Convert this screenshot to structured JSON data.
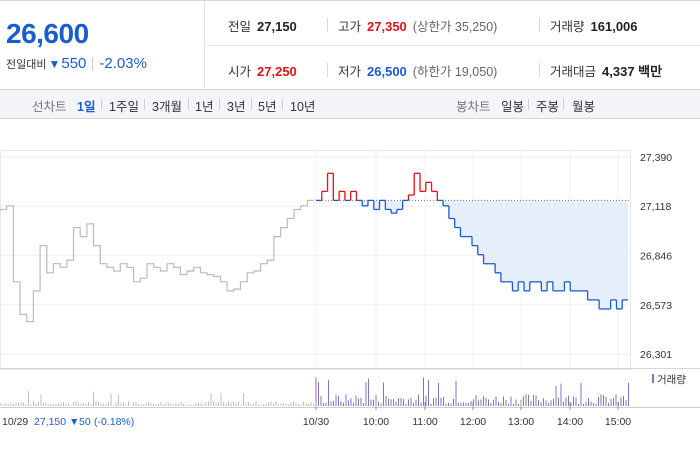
{
  "quote": {
    "price": "26,600",
    "change_label": "전일대비",
    "change": "550",
    "change_rate": "-2.03%",
    "prev_close_label": "전일",
    "prev_close": "27,150",
    "high_label": "고가",
    "high": "27,350",
    "upper_limit": "(상한가 35,250)",
    "volume_label": "거래량",
    "volume": "161,006",
    "open_label": "시가",
    "open": "27,250",
    "low_label": "저가",
    "low": "26,500",
    "lower_limit": "(하한가 19,050)",
    "value_label": "거래대금",
    "value": "4,337 백만",
    "colors": {
      "up": "#e0131a",
      "down": "#1a5dd0"
    }
  },
  "line_tabs": {
    "label": "선차트",
    "items": [
      "1일",
      "1주일",
      "3개월",
      "1년",
      "3년",
      "5년",
      "10년"
    ],
    "selected": "1일"
  },
  "candle_tabs": {
    "label": "봉차트",
    "items": [
      "일봉",
      "주봉",
      "월봉"
    ]
  },
  "chart_data": {
    "type": "line",
    "ylim": [
      26301,
      27390
    ],
    "ytick_labels": [
      "27,390",
      "27,118",
      "26,846",
      "26,573",
      "26,301"
    ],
    "yticks": [
      27390,
      27118,
      26846,
      26573,
      26301
    ],
    "xtick_labels": [
      "10/30",
      "10:00",
      "11:00",
      "12:00",
      "13:00",
      "14:00",
      "15:00"
    ],
    "reference_price": 27150,
    "volume_label": "거래량",
    "prev_day": {
      "date": "10/29",
      "close": "27,150",
      "change": "50",
      "change_rate": "(-0.18%)",
      "values": [
        27100,
        27120,
        26700,
        26520,
        26480,
        26650,
        26900,
        26750,
        26800,
        26780,
        26820,
        27000,
        26950,
        27020,
        26900,
        26800,
        26780,
        26760,
        26800,
        26780,
        26700,
        26720,
        26800,
        26780,
        26760,
        26800,
        26780,
        26740,
        26760,
        26780,
        26750,
        26740,
        26730,
        26700,
        26650,
        26660,
        26700,
        26750,
        26760,
        26800,
        26820,
        26950,
        27000,
        27050,
        27100,
        27120,
        27150,
        27150
      ]
    },
    "today": {
      "values": [
        27150,
        27200,
        27300,
        27150,
        27200,
        27150,
        27200,
        27150,
        27120,
        27150,
        27100,
        27150,
        27100,
        27080,
        27100,
        27150,
        27180,
        27300,
        27200,
        27250,
        27200,
        27150,
        27120,
        27050,
        27000,
        26950,
        26950,
        26900,
        26850,
        26800,
        26800,
        26750,
        26700,
        26700,
        26650,
        26700,
        26650,
        26700,
        26700,
        26650,
        26700,
        26650,
        26650,
        26700,
        26650,
        26650,
        26650,
        26600,
        26600,
        26550,
        26550,
        26600,
        26550,
        26600,
        26600
      ]
    }
  }
}
